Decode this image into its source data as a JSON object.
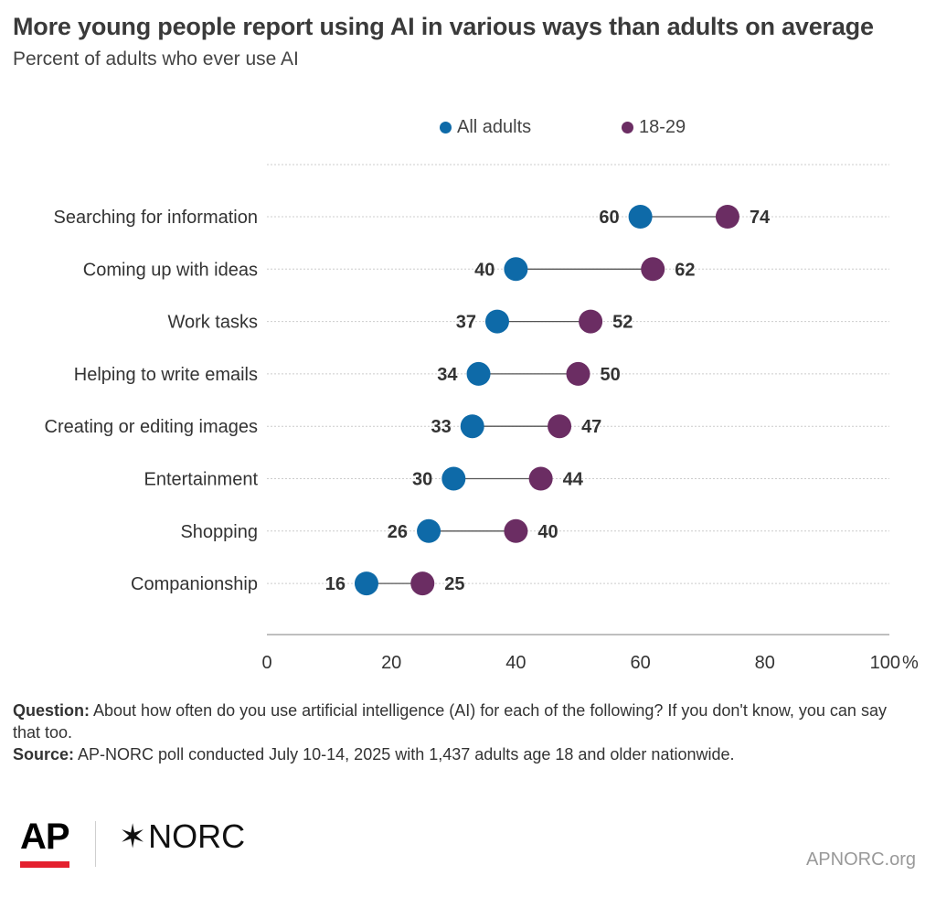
{
  "header": {
    "title": "More young people report using AI in various ways than adults on average",
    "subtitle": "Percent of adults who ever use AI"
  },
  "legend": {
    "all_label": "All adults",
    "young_label": "18-29"
  },
  "colors": {
    "all_adults": "#0e6aa8",
    "young": "#6b2d63",
    "connector": "#555555",
    "gridline": "#cccccc"
  },
  "chart_data": {
    "type": "dumbbell",
    "title": "More young people report using AI in various ways than adults on average",
    "subtitle": "Percent of adults who ever use AI",
    "categories": [
      "Searching for information",
      "Coming up with ideas",
      "Work tasks",
      "Helping to write emails",
      "Creating or editing images",
      "Entertainment",
      "Shopping",
      "Companionship"
    ],
    "series": [
      {
        "name": "All adults",
        "values": [
          60,
          40,
          37,
          34,
          33,
          30,
          26,
          16
        ]
      },
      {
        "name": "18-29",
        "values": [
          74,
          62,
          52,
          50,
          47,
          44,
          40,
          25
        ]
      }
    ],
    "xlim": [
      0,
      100
    ],
    "xticks": [
      "0",
      "20",
      "40",
      "60",
      "80",
      "100"
    ],
    "x_unit": "%",
    "grid": true,
    "legend_position": "top"
  },
  "notes": {
    "question_label": "Question:",
    "question_text": " About how often do you use artificial intelligence (AI) for each of the following? If you don't know, you can say that too.",
    "source_label": "Source:",
    "source_text": " AP-NORC poll conducted July 10-14, 2025 with 1,437 adults age 18 and older nationwide."
  },
  "footer": {
    "ap_logo": "AP",
    "norc_star": "✶",
    "norc_logo": "NORC",
    "site": "APNORC.org"
  }
}
